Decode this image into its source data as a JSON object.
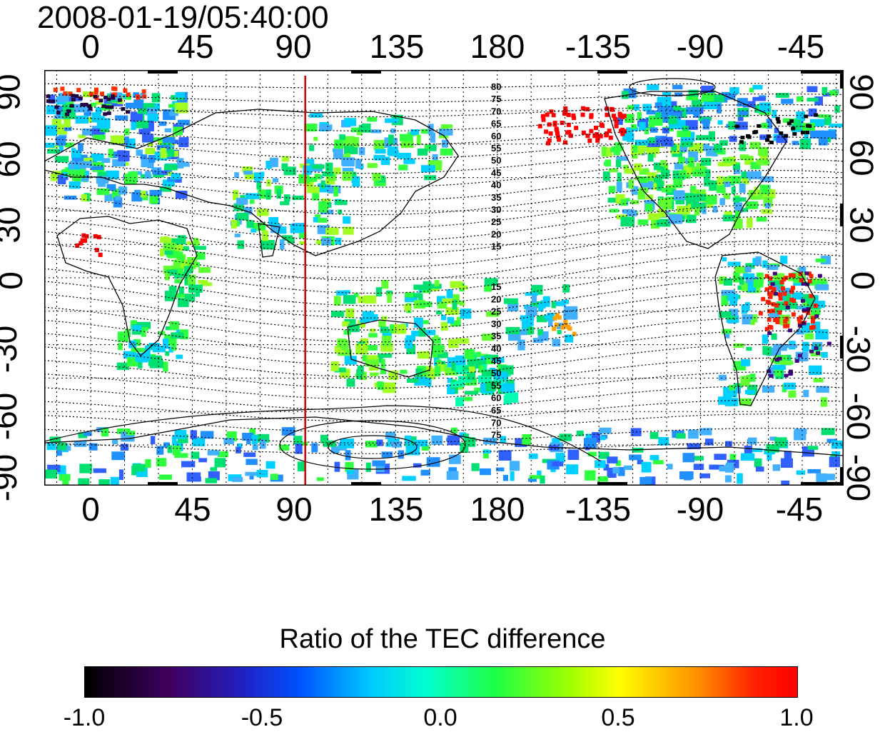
{
  "timestamp": "2008-01-19/05:40:00",
  "map": {
    "top_lon_ticks": [
      "0",
      "45",
      "90",
      "135",
      "180",
      "-135",
      "-90",
      "-45"
    ],
    "bottom_lon_ticks": [
      "0",
      "45",
      "90",
      "135",
      "180",
      "-135",
      "-90",
      "-45"
    ],
    "left_lat_ticks": [
      "90",
      "60",
      "30",
      "0",
      "-30",
      "-60",
      "-90"
    ],
    "right_lat_ticks": [
      "90",
      "60",
      "30",
      "0",
      "-30",
      "-60",
      "-90"
    ],
    "contour_labels_north": [
      "80",
      "75",
      "70",
      "65",
      "60",
      "55",
      "50",
      "45",
      "40",
      "35",
      "30",
      "25",
      "20",
      "15"
    ],
    "contour_labels_south": [
      "15",
      "20",
      "25",
      "30",
      "35",
      "40",
      "45",
      "50",
      "55",
      "60",
      "65",
      "70",
      "75"
    ],
    "terminator_longitude": 95,
    "terminator_color": "#cc0000"
  },
  "colorbar": {
    "title": "Ratio of the TEC difference",
    "ticks": [
      "-1.0",
      "-0.5",
      "0.0",
      "0.5",
      "1.0"
    ],
    "range": [
      -1.0,
      1.0
    ]
  }
}
